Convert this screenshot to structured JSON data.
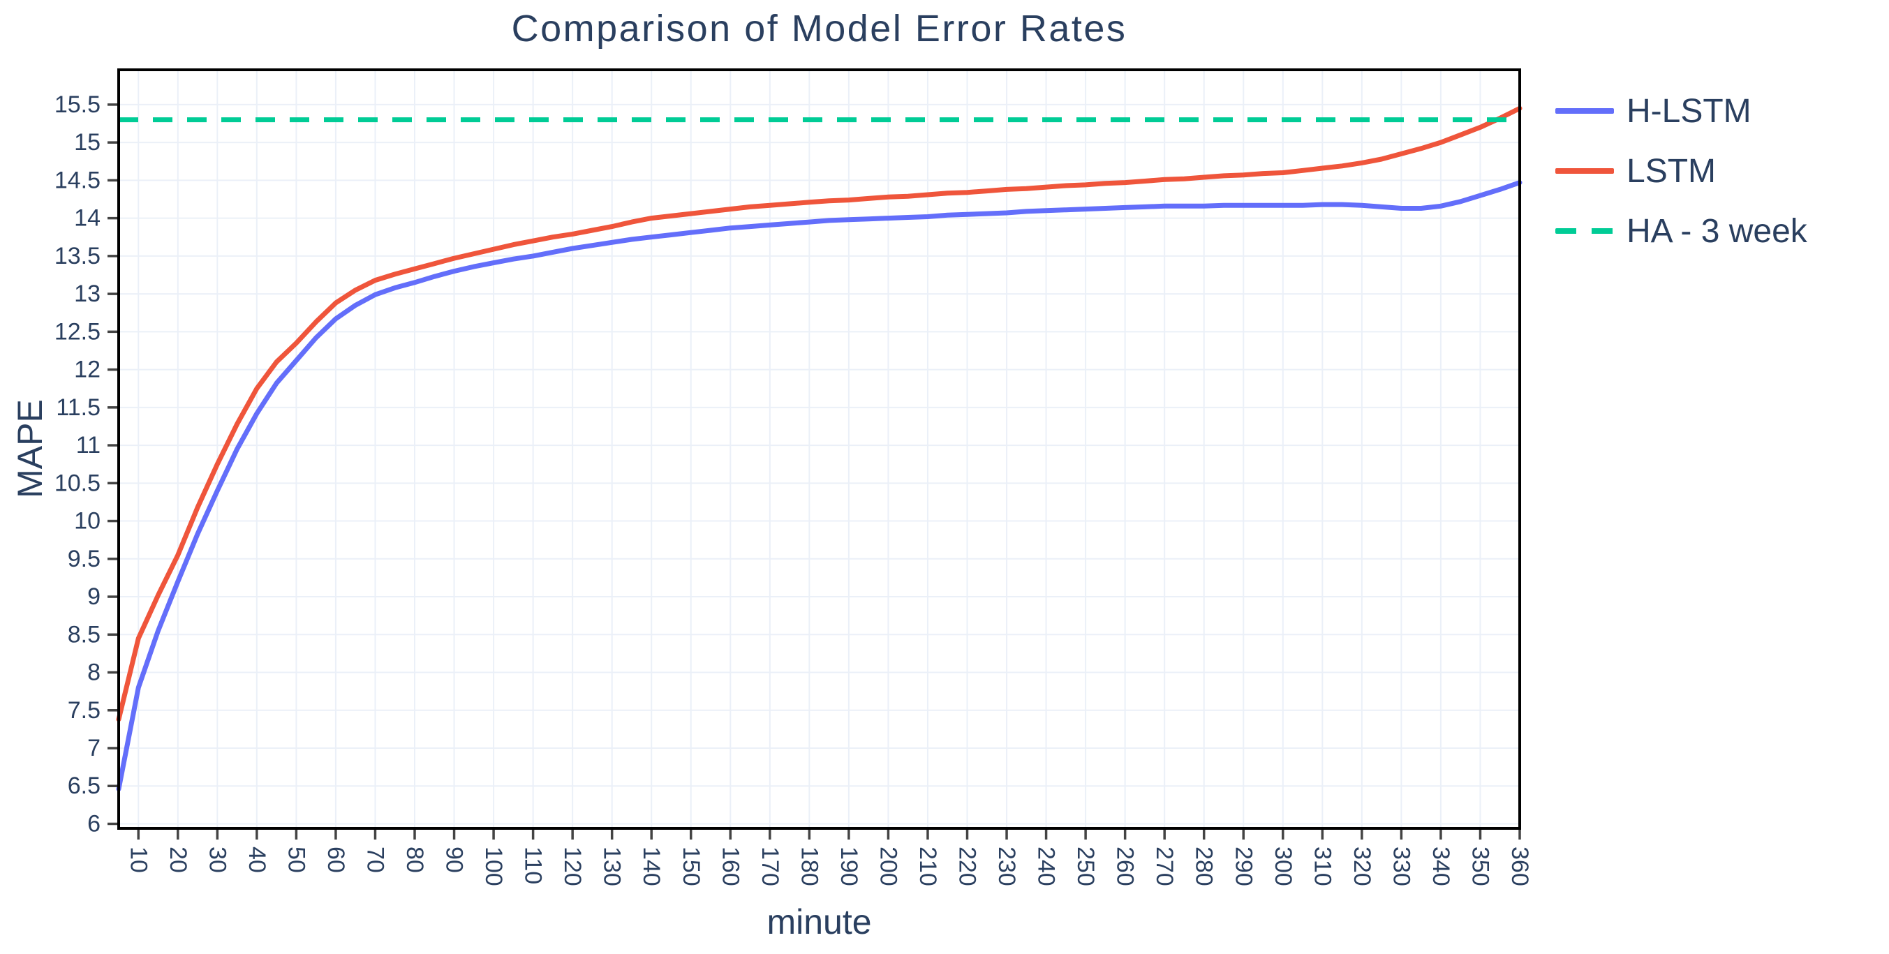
{
  "figure": {
    "title": "Comparison of Model Error Rates",
    "xlabel": "minute",
    "ylabel": "MAPE"
  },
  "colors": {
    "text": "#2a3f5f",
    "grid": "#EBF0F8",
    "axis_frame": "#000000",
    "tick": "#444444",
    "background": "#ffffff",
    "h_lstm": "#636EFA",
    "lstm": "#EF553B",
    "ha": "#00CC96"
  },
  "chart_data": {
    "type": "line",
    "title": "Comparison of Model Error Rates",
    "xlabel": "minute",
    "ylabel": "MAPE",
    "xlim": [
      5,
      360
    ],
    "ylim": [
      5.94,
      15.96
    ],
    "grid": true,
    "legend_position": "right",
    "x_tick_angle": 90,
    "x_ticks": [
      10,
      20,
      30,
      40,
      50,
      60,
      70,
      80,
      90,
      100,
      110,
      120,
      130,
      140,
      150,
      160,
      170,
      180,
      190,
      200,
      210,
      220,
      230,
      240,
      250,
      260,
      270,
      280,
      290,
      300,
      310,
      320,
      330,
      340,
      350,
      360
    ],
    "y_ticks": [
      6,
      6.5,
      7,
      7.5,
      8,
      8.5,
      9,
      9.5,
      10,
      10.5,
      11,
      11.5,
      12,
      12.5,
      13,
      13.5,
      14,
      14.5,
      15,
      15.5
    ],
    "x": [
      5,
      10,
      15,
      20,
      25,
      30,
      35,
      40,
      45,
      50,
      55,
      60,
      65,
      70,
      75,
      80,
      85,
      90,
      95,
      100,
      105,
      110,
      115,
      120,
      125,
      130,
      135,
      140,
      145,
      150,
      155,
      160,
      165,
      170,
      175,
      180,
      185,
      190,
      195,
      200,
      205,
      210,
      215,
      220,
      225,
      230,
      235,
      240,
      245,
      250,
      255,
      260,
      265,
      270,
      275,
      280,
      285,
      290,
      295,
      300,
      305,
      310,
      315,
      320,
      325,
      330,
      335,
      340,
      345,
      350,
      355,
      360
    ],
    "series": [
      {
        "name": "H-LSTM",
        "color": "#636EFA",
        "style": "solid",
        "values": [
          6.46,
          7.8,
          8.55,
          9.2,
          9.83,
          10.4,
          10.95,
          11.42,
          11.82,
          12.12,
          12.42,
          12.67,
          12.85,
          12.99,
          13.08,
          13.15,
          13.23,
          13.3,
          13.36,
          13.41,
          13.46,
          13.5,
          13.55,
          13.6,
          13.64,
          13.68,
          13.72,
          13.75,
          13.78,
          13.81,
          13.84,
          13.87,
          13.89,
          13.91,
          13.93,
          13.95,
          13.97,
          13.98,
          13.99,
          14.0,
          14.01,
          14.02,
          14.04,
          14.05,
          14.06,
          14.07,
          14.09,
          14.1,
          14.11,
          14.12,
          14.13,
          14.14,
          14.15,
          14.16,
          14.16,
          14.16,
          14.17,
          14.17,
          14.17,
          14.17,
          14.17,
          14.18,
          14.18,
          14.17,
          14.15,
          14.13,
          14.13,
          14.16,
          14.22,
          14.3,
          14.38,
          14.47
        ]
      },
      {
        "name": "LSTM",
        "color": "#EF553B",
        "style": "solid",
        "values": [
          7.38,
          8.45,
          9.02,
          9.55,
          10.18,
          10.75,
          11.28,
          11.75,
          12.1,
          12.35,
          12.63,
          12.88,
          13.05,
          13.18,
          13.26,
          13.33,
          13.4,
          13.47,
          13.53,
          13.59,
          13.65,
          13.7,
          13.75,
          13.79,
          13.84,
          13.89,
          13.95,
          14.0,
          14.03,
          14.06,
          14.09,
          14.12,
          14.15,
          14.17,
          14.19,
          14.21,
          14.23,
          14.24,
          14.26,
          14.28,
          14.29,
          14.31,
          14.33,
          14.34,
          14.36,
          14.38,
          14.39,
          14.41,
          14.43,
          14.44,
          14.46,
          14.47,
          14.49,
          14.51,
          14.52,
          14.54,
          14.56,
          14.57,
          14.59,
          14.6,
          14.63,
          14.66,
          14.69,
          14.73,
          14.78,
          14.85,
          14.92,
          15.0,
          15.1,
          15.2,
          15.32,
          15.45
        ]
      },
      {
        "name": "HA - 3 week",
        "color": "#00CC96",
        "style": "dash",
        "type": "hline",
        "value": 15.3
      }
    ]
  }
}
